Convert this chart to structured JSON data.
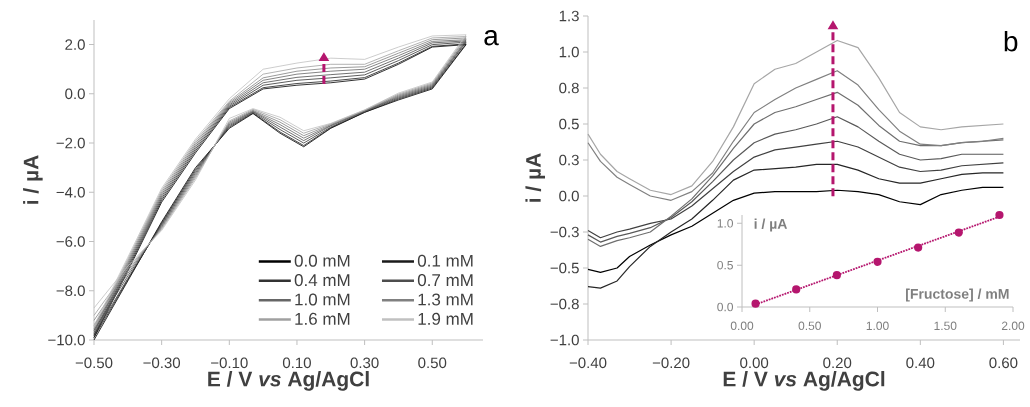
{
  "chart_data": [
    {
      "type": "line",
      "xlabel": "E / V *vs* Ag/AgCl",
      "ylabel": "i / µA",
      "annotations": [
        "a"
      ],
      "xlim": [
        -0.5,
        0.65
      ],
      "ylim": [
        -10,
        3
      ],
      "xticks": [
        {
          "value": -0.5,
          "label": "−0.50"
        },
        {
          "value": -0.3,
          "label": "−0.30"
        },
        {
          "value": -0.1,
          "label": "−0.10"
        },
        {
          "value": 0.1,
          "label": "0.10"
        },
        {
          "value": 0.3,
          "label": "0.30"
        },
        {
          "value": 0.5,
          "label": "0.50"
        }
      ],
      "yticks": [
        {
          "value": -10,
          "label": "−10.0"
        },
        {
          "value": -8,
          "label": "−8.0"
        },
        {
          "value": -6,
          "label": "−6.0"
        },
        {
          "value": -4,
          "label": "−4.0"
        },
        {
          "value": -2,
          "label": "−2.0"
        },
        {
          "value": 0,
          "label": "0.0"
        },
        {
          "value": 2,
          "label": "2.0"
        }
      ],
      "legend": "bottom right",
      "x": [
        -0.5,
        -0.4,
        -0.3,
        -0.2,
        -0.1,
        0,
        0.1,
        0.2,
        0.3,
        0.4,
        0.5,
        0.6,
        0.5,
        0.4,
        0.3,
        0.2,
        0.12,
        0.05,
        -0.03,
        -0.1,
        -0.2,
        -0.3,
        -0.4,
        -0.5
      ],
      "series": [
        {
          "name": "0.0 mM",
          "color": "#000000",
          "values": [
            -9.9,
            -7.2,
            -4.4,
            -2.4,
            -0.6,
            0.2,
            0.35,
            0.45,
            0.6,
            1.2,
            1.9,
            2.0,
            0.2,
            -0.25,
            -0.75,
            -1.4,
            -2.15,
            -1.6,
            -0.8,
            -1.4,
            -3.0,
            -5.2,
            -7.6,
            -10.0
          ]
        },
        {
          "name": "0.1 mM",
          "color": "#1a1a1a",
          "values": [
            -9.83,
            -7.12,
            -4.32,
            -2.32,
            -0.55,
            0.25,
            0.42,
            0.52,
            0.66,
            1.25,
            1.93,
            2.03,
            0.24,
            -0.21,
            -0.75,
            -1.38,
            -2.1,
            -1.55,
            -0.78,
            -1.35,
            -3.07,
            -5.25,
            -7.55,
            -9.9
          ]
        },
        {
          "name": "0.4 mM",
          "color": "#333333",
          "values": [
            -9.76,
            -7.04,
            -4.24,
            -2.24,
            -0.5,
            0.35,
            0.55,
            0.65,
            0.77,
            1.35,
            2.0,
            2.1,
            0.28,
            -0.17,
            -0.72,
            -1.35,
            -2.0,
            -1.45,
            -0.75,
            -1.3,
            -3.14,
            -5.3,
            -7.5,
            -9.8
          ]
        },
        {
          "name": "0.7 mM",
          "color": "#4d4d4d",
          "values": [
            -9.69,
            -6.96,
            -4.16,
            -2.16,
            -0.45,
            0.45,
            0.67,
            0.78,
            0.88,
            1.45,
            2.07,
            2.15,
            0.32,
            -0.13,
            -0.7,
            -1.3,
            -1.9,
            -1.35,
            -0.72,
            -1.25,
            -3.21,
            -5.35,
            -7.4,
            -9.6
          ]
        },
        {
          "name": "1.0 mM",
          "color": "#666666",
          "values": [
            -9.62,
            -6.88,
            -4.08,
            -2.08,
            -0.4,
            0.55,
            0.8,
            0.92,
            1.0,
            1.55,
            2.13,
            2.2,
            0.36,
            -0.09,
            -0.7,
            -1.28,
            -1.8,
            -1.25,
            -0.7,
            -1.2,
            -3.28,
            -5.4,
            -7.3,
            -9.4
          ]
        },
        {
          "name": "1.3 mM",
          "color": "#808080",
          "values": [
            -9.55,
            -6.8,
            -4.0,
            -2.0,
            -0.35,
            0.65,
            0.92,
            1.05,
            1.1,
            1.65,
            2.2,
            2.27,
            0.4,
            -0.05,
            -0.68,
            -1.25,
            -1.7,
            -1.15,
            -0.67,
            -1.15,
            -3.35,
            -5.45,
            -7.2,
            -9.2
          ]
        },
        {
          "name": "1.6 mM",
          "color": "#a0a0a0",
          "values": [
            -9.48,
            -6.72,
            -3.92,
            -1.92,
            -0.3,
            0.8,
            1.05,
            1.2,
            1.2,
            1.75,
            2.27,
            2.33,
            0.44,
            -0.01,
            -0.66,
            -1.22,
            -1.6,
            -1.05,
            -0.63,
            -1.1,
            -3.42,
            -5.5,
            -7.1,
            -9.0
          ]
        },
        {
          "name": "1.9 mM",
          "color": "#c0c0c0",
          "values": [
            -9.41,
            -6.64,
            -3.84,
            -1.84,
            -0.2,
            1.0,
            1.25,
            1.45,
            1.4,
            1.9,
            2.35,
            2.4,
            0.48,
            0.03,
            -0.65,
            -1.2,
            -1.5,
            -0.95,
            -0.6,
            -1.0,
            -3.5,
            -5.55,
            -7.0,
            -8.7
          ]
        }
      ]
    },
    {
      "type": "line",
      "xlabel": "E / V *vs* Ag/AgCl",
      "ylabel": "i / µA",
      "annotations": [
        "b"
      ],
      "xlim": [
        -0.4,
        0.64
      ],
      "ylim": [
        -1,
        1.25
      ],
      "xticks": [
        {
          "value": -0.4,
          "label": "−0.40"
        },
        {
          "value": -0.2,
          "label": "−0.20"
        },
        {
          "value": 0,
          "label": "0.00"
        },
        {
          "value": 0.2,
          "label": "0.20"
        },
        {
          "value": 0.4,
          "label": "0.40"
        },
        {
          "value": 0.6,
          "label": "0.60"
        }
      ],
      "yticks": [
        {
          "value": -1,
          "label": "−1.0"
        },
        {
          "value": -0.75,
          "label": "−0.8"
        },
        {
          "value": -0.5,
          "label": "−0.5"
        },
        {
          "value": -0.25,
          "label": "−0.3"
        },
        {
          "value": 0,
          "label": "0.0"
        },
        {
          "value": 0.25,
          "label": "0.3"
        },
        {
          "value": 0.5,
          "label": "0.5"
        },
        {
          "value": 0.75,
          "label": "0.8"
        },
        {
          "value": 1,
          "label": "1.0"
        },
        {
          "value": 1.25,
          "label": "1.3"
        }
      ],
      "x": [
        -0.4,
        -0.37,
        -0.33,
        -0.3,
        -0.25,
        -0.2,
        -0.15,
        -0.1,
        -0.05,
        0,
        0.05,
        0.1,
        0.15,
        0.2,
        0.25,
        0.3,
        0.35,
        0.4,
        0.45,
        0.5,
        0.55,
        0.6
      ],
      "series": [
        {
          "color": "#000000",
          "values": [
            -0.51,
            -0.53,
            -0.5,
            -0.42,
            -0.34,
            -0.27,
            -0.21,
            -0.12,
            -0.03,
            0.02,
            0.03,
            0.03,
            0.03,
            0.04,
            0.03,
            0.01,
            -0.04,
            -0.06,
            0.01,
            0.04,
            0.06,
            0.06
          ]
        },
        {
          "color": "#262626",
          "values": [
            -0.63,
            -0.64,
            -0.59,
            -0.49,
            -0.35,
            -0.25,
            -0.16,
            -0.03,
            0.11,
            0.18,
            0.19,
            0.2,
            0.22,
            0.22,
            0.18,
            0.12,
            0.09,
            0.09,
            0.12,
            0.15,
            0.16,
            0.16
          ]
        },
        {
          "color": "#404040",
          "values": [
            -0.24,
            -0.29,
            -0.25,
            -0.23,
            -0.19,
            -0.16,
            -0.07,
            0.05,
            0.17,
            0.27,
            0.32,
            0.34,
            0.36,
            0.38,
            0.34,
            0.27,
            0.2,
            0.17,
            0.18,
            0.21,
            0.22,
            0.23
          ]
        },
        {
          "color": "#595959",
          "values": [
            -0.27,
            -0.32,
            -0.28,
            -0.26,
            -0.22,
            -0.15,
            -0.04,
            0.1,
            0.25,
            0.37,
            0.43,
            0.46,
            0.5,
            0.55,
            0.48,
            0.38,
            0.29,
            0.25,
            0.26,
            0.29,
            0.29,
            0.29
          ]
        },
        {
          "color": "#6e6e6e",
          "values": [
            -0.3,
            -0.35,
            -0.31,
            -0.29,
            -0.25,
            -0.14,
            -0.02,
            0.14,
            0.33,
            0.5,
            0.58,
            0.62,
            0.67,
            0.72,
            0.63,
            0.49,
            0.38,
            0.35,
            0.35,
            0.37,
            0.38,
            0.39
          ]
        },
        {
          "color": "#808080",
          "values": [
            0.37,
            0.24,
            0.13,
            0.08,
            0.0,
            -0.03,
            0.03,
            0.16,
            0.38,
            0.58,
            0.67,
            0.75,
            0.81,
            0.87,
            0.77,
            0.6,
            0.45,
            0.36,
            0.35,
            0.37,
            0.38,
            0.4
          ]
        },
        {
          "color": "#a6a6a6",
          "values": [
            0.43,
            0.29,
            0.17,
            0.12,
            0.04,
            0.01,
            0.07,
            0.24,
            0.48,
            0.78,
            0.88,
            0.92,
            1.0,
            1.08,
            1.03,
            0.82,
            0.58,
            0.48,
            0.46,
            0.48,
            0.49,
            0.5
          ]
        }
      ]
    },
    {
      "type": "line",
      "xlabel": "[Fructose] / mM",
      "ylabel": "i / µA",
      "xlim": [
        0,
        2
      ],
      "ylim": [
        0,
        1.1
      ],
      "xticks": [
        {
          "value": 0,
          "label": "0.00"
        },
        {
          "value": 0.5,
          "label": "0.50"
        },
        {
          "value": 1,
          "label": "1.00"
        },
        {
          "value": 1.5,
          "label": "1.50"
        },
        {
          "value": 2,
          "label": "2.00"
        }
      ],
      "yticks": [
        {
          "value": 0,
          "label": "0.0"
        },
        {
          "value": 0.5,
          "label": "0.5"
        },
        {
          "value": 1,
          "label": "1.0"
        }
      ],
      "x": [
        0.1,
        0.4,
        0.7,
        1.0,
        1.3,
        1.6,
        1.9
      ],
      "series": [
        {
          "type": "line",
          "line_style": "dotted",
          "color": "#b5166e",
          "x": [
            0.1,
            1.9
          ],
          "values": [
            0.03,
            1.08
          ]
        },
        {
          "type": "scatter",
          "marker": "circle",
          "color": "#b5166e",
          "values": [
            0.04,
            0.21,
            0.38,
            0.54,
            0.71,
            0.89,
            1.1
          ]
        }
      ]
    }
  ]
}
